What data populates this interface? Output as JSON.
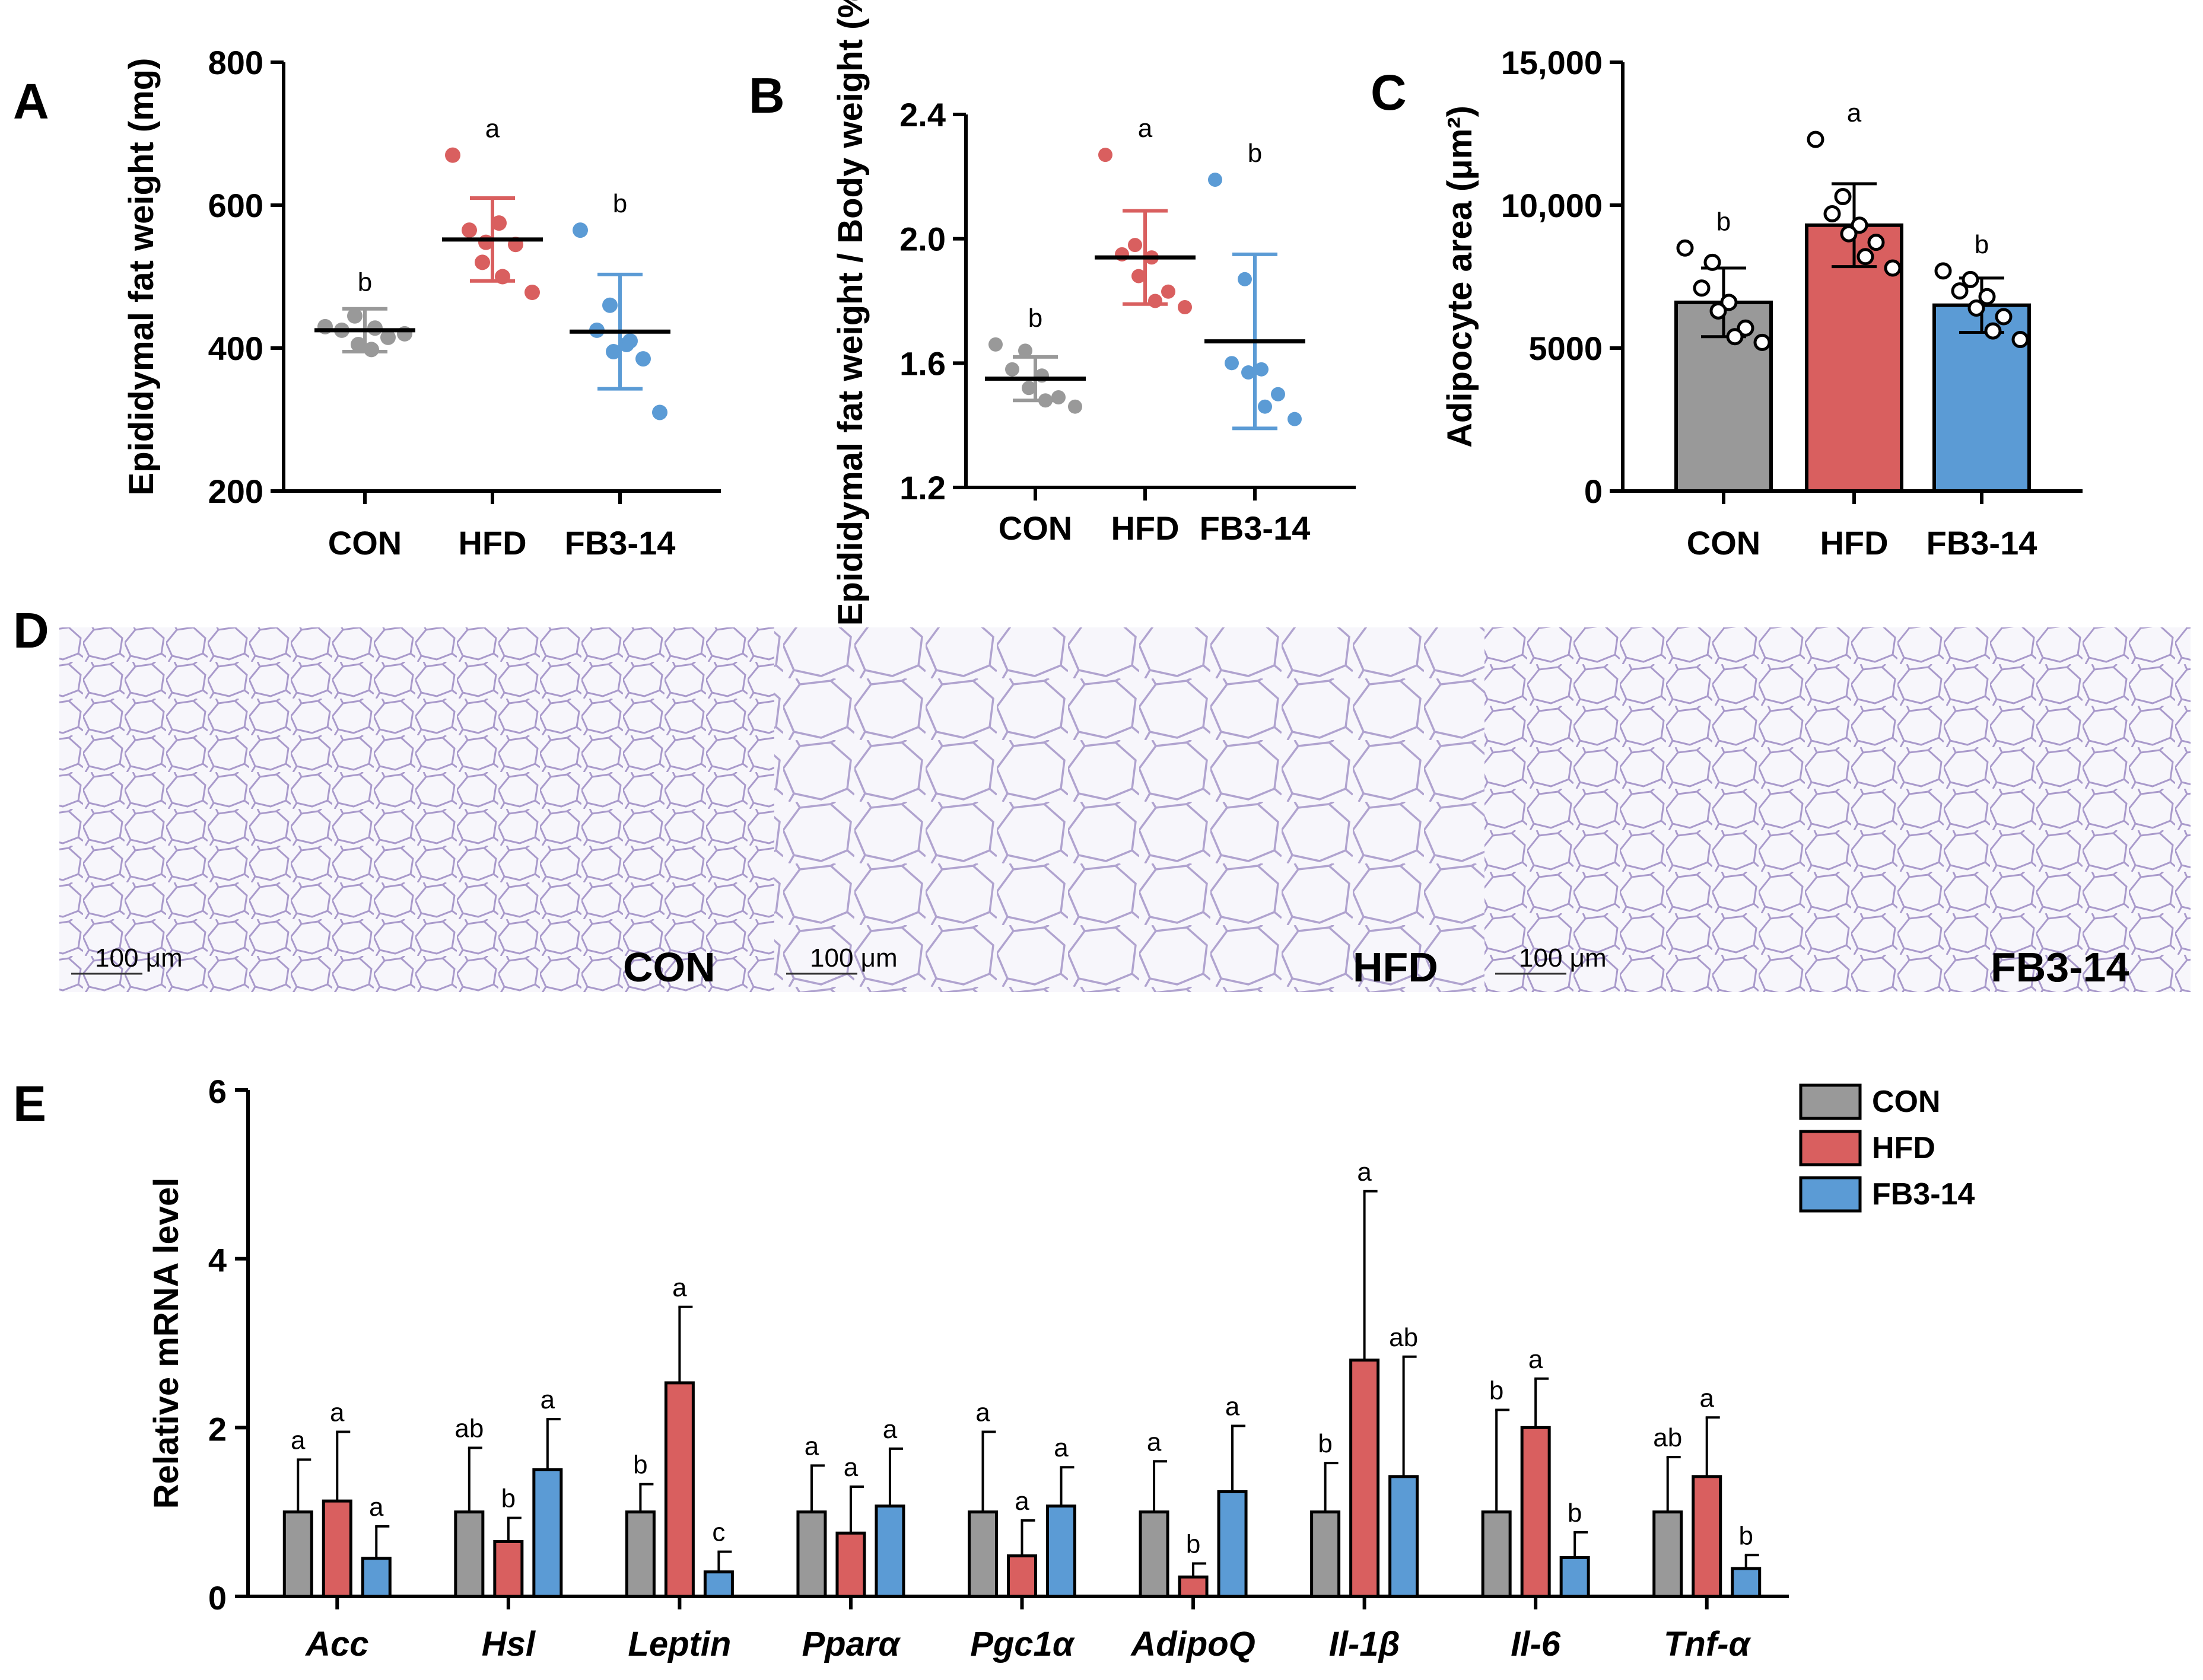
{
  "colors": {
    "CON": "#999999",
    "HFD": "#d95f5f",
    "FB3-14": "#5b9bd5",
    "cell_wall": "#a898c8",
    "cell_bg": "#f6f4fa"
  },
  "panels": {
    "A": {
      "label": "A"
    },
    "B": {
      "label": "B"
    },
    "C": {
      "label": "C"
    },
    "D": {
      "label": "D",
      "image_labels": [
        "CON",
        "HFD",
        "FB3-14"
      ],
      "scale_text": "100 μm"
    },
    "E": {
      "label": "E"
    }
  },
  "chart_data": [
    {
      "id": "A",
      "type": "scatter",
      "ylabel": "Epididymal fat weight (mg)",
      "ylim": [
        200,
        800
      ],
      "yticks": [
        "200",
        "400",
        "600",
        "800"
      ],
      "categories": [
        "CON",
        "HFD",
        "FB3-14"
      ],
      "points": [
        [
          430,
          445,
          425,
          398,
          405,
          415,
          428,
          420
        ],
        [
          670,
          520,
          565,
          575,
          548,
          545,
          500,
          478
        ],
        [
          565,
          460,
          425,
          405,
          395,
          385,
          410,
          310
        ]
      ],
      "mean": [
        425,
        552,
        423
      ],
      "sd": [
        30,
        58,
        80
      ],
      "sig": [
        "b",
        "a",
        "b"
      ]
    },
    {
      "id": "B",
      "type": "scatter",
      "ylabel": "Epididymal fat weight / Body weight (%)",
      "ylim": [
        1.2,
        2.4
      ],
      "yticks": [
        "1.2",
        "1.6",
        "2.0",
        "2.4"
      ],
      "categories": [
        "CON",
        "HFD",
        "FB3-14"
      ],
      "points": [
        [
          1.66,
          1.64,
          1.58,
          1.56,
          1.52,
          1.49,
          1.48,
          1.46
        ],
        [
          2.27,
          1.98,
          1.95,
          1.94,
          1.88,
          1.83,
          1.8,
          1.78
        ],
        [
          2.19,
          1.87,
          1.6,
          1.58,
          1.57,
          1.5,
          1.46,
          1.42
        ]
      ],
      "mean": [
        1.55,
        1.94,
        1.67
      ],
      "sd": [
        0.07,
        0.15,
        0.28
      ],
      "sig": [
        "b",
        "a",
        "b"
      ]
    },
    {
      "id": "C",
      "type": "bar",
      "ylabel": "Adipocyte area (μm²)",
      "ylim": [
        0,
        15000
      ],
      "yticks": [
        "0",
        "5000",
        "10,000",
        "15,000"
      ],
      "categories": [
        "CON",
        "HFD",
        "FB3-14"
      ],
      "values": [
        6600,
        9300,
        6500
      ],
      "sd": [
        1200,
        1450,
        950
      ],
      "points": [
        [
          8500,
          8000,
          7100,
          6600,
          6300,
          5700,
          5400,
          5200
        ],
        [
          12300,
          10300,
          9700,
          9300,
          9000,
          8700,
          8200,
          7800
        ],
        [
          7700,
          7400,
          7000,
          6800,
          6400,
          6100,
          5600,
          5300
        ]
      ],
      "sig": [
        "b",
        "a",
        "b"
      ]
    },
    {
      "id": "E",
      "type": "bar",
      "ylabel": "Relative mRNA level",
      "ylim": [
        0,
        6
      ],
      "yticks": [
        "0",
        "2",
        "4",
        "6"
      ],
      "categories": [
        "Acc",
        "Hsl",
        "Leptin",
        "Pparα",
        "Pgc1α",
        "AdipoQ",
        "Il-1β",
        "Il-6",
        "Tnf-α"
      ],
      "series": [
        {
          "name": "CON",
          "values": [
            1.0,
            1.0,
            1.0,
            1.0,
            1.0,
            1.0,
            1.0,
            1.0,
            1.0
          ],
          "sd": [
            0.62,
            0.76,
            0.33,
            0.55,
            0.95,
            0.6,
            0.58,
            1.21,
            0.65
          ],
          "sig": [
            "a",
            "ab",
            "b",
            "a",
            "a",
            "a",
            "b",
            "b",
            "ab"
          ]
        },
        {
          "name": "HFD",
          "values": [
            1.13,
            0.65,
            2.53,
            0.75,
            0.48,
            0.23,
            2.8,
            2.0,
            1.42
          ],
          "sd": [
            0.82,
            0.28,
            0.9,
            0.55,
            0.42,
            0.16,
            2.0,
            0.58,
            0.7
          ],
          "sig": [
            "a",
            "b",
            "a",
            "a",
            "a",
            "b",
            "a",
            "a",
            "a"
          ]
        },
        {
          "name": "FB3-14",
          "values": [
            0.45,
            1.5,
            0.29,
            1.07,
            1.07,
            1.24,
            1.42,
            0.46,
            0.33
          ],
          "sd": [
            0.38,
            0.6,
            0.24,
            0.68,
            0.46,
            0.78,
            1.42,
            0.3,
            0.16
          ],
          "sig": [
            "a",
            "a",
            "c",
            "a",
            "a",
            "a",
            "ab",
            "b",
            "b"
          ]
        }
      ],
      "legend": [
        "CON",
        "HFD",
        "FB3-14"
      ],
      "legend_position": "top-right"
    }
  ]
}
